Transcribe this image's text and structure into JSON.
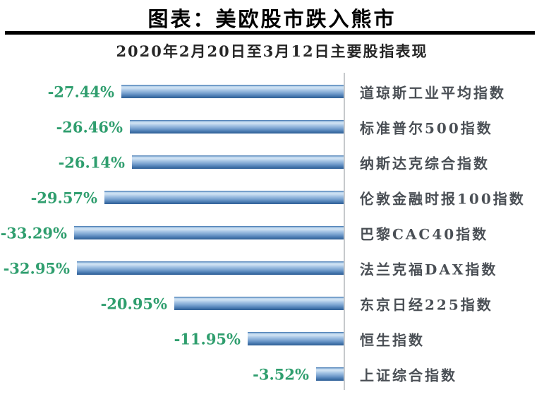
{
  "header": {
    "title": "图表：美欧股市跌入熊市",
    "subtitle": "2020年2月20日至3月12日主要股指表现"
  },
  "colors": {
    "title_text": "#000000",
    "subtitle_text": "#262626",
    "divider": "#000000",
    "value_label_green": "#2f9e6e",
    "category_text": "#4a4f55",
    "axis_gray": "#c6c9cc",
    "bar_gradient": {
      "top_edge": "#3c70a9",
      "upper": "#6d9ac9",
      "highlight_1": "#c2d9ef",
      "highlight_2": "#cfe2f3",
      "mid_light": "#a3c3e4",
      "mid": "#7aa3d0",
      "lower": "#5181b7",
      "bottom": "#38699f",
      "bottom_edge": "#32629a"
    }
  },
  "chart_data": {
    "type": "bar",
    "orientation": "horizontal",
    "title": "2020年2月20日至3月12日主要股指表现",
    "xlabel": "",
    "ylabel": "",
    "unit": "%",
    "xlim": [
      -35,
      0
    ],
    "grid": false,
    "legend": false,
    "axis_side": "right",
    "categories": [
      "道琼斯工业平均指数",
      "标准普尔500指数",
      "纳斯达克综合指数",
      "伦敦金融时报100指数",
      "巴黎CAC40指数",
      "法兰克福DAX指数",
      "东京日经225指数",
      "恒生指数",
      "上证综合指数"
    ],
    "values": [
      -27.44,
      -26.46,
      -26.14,
      -29.57,
      -33.29,
      -32.95,
      -20.95,
      -11.95,
      -3.52
    ],
    "value_labels": [
      "-27.44%",
      "-26.46%",
      "-26.14%",
      "-29.57%",
      "-33.29%",
      "-32.95%",
      "-20.95%",
      "-11.95%",
      "-3.52%"
    ]
  }
}
